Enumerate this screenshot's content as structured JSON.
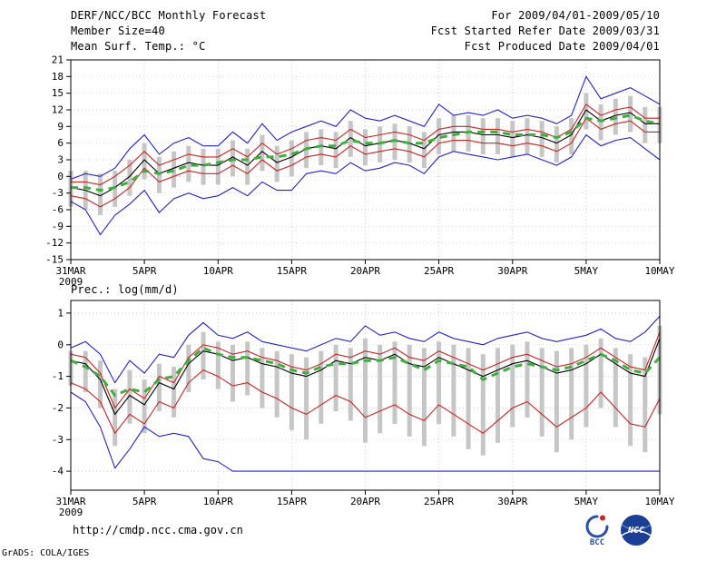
{
  "header": {
    "title": "DERF/NCC/BCC Monthly Forecast",
    "period": "For 2009/04/01-2009/05/10",
    "member_size": "Member Size=40",
    "refer_date": "Fcst Started Refer Date 2009/03/31",
    "produced_date": "Fcst Produced Date 2009/04/01"
  },
  "footer": {
    "url": "http://cmdp.ncc.cma.gov.cn",
    "grads_credit": "GrADS: COLA/IGES",
    "logos": {
      "bcc": "BCC",
      "ncc": "NCC"
    }
  },
  "chart_data": [
    {
      "type": "line",
      "title": "Mean Surf. Temp.: °C",
      "x_axis": "daily values from 31MAR2009 to 10MAY2009",
      "xticks": [
        {
          "i": 0,
          "label": "31MAR",
          "sub": "2009"
        },
        {
          "i": 5,
          "label": "5APR"
        },
        {
          "i": 10,
          "label": "10APR"
        },
        {
          "i": 15,
          "label": "15APR"
        },
        {
          "i": 20,
          "label": "20APR"
        },
        {
          "i": 25,
          "label": "25APR"
        },
        {
          "i": 30,
          "label": "30APR"
        },
        {
          "i": 35,
          "label": "5MAY"
        },
        {
          "i": 40,
          "label": "10MAY"
        }
      ],
      "yticks": [
        21,
        18,
        15,
        12,
        9,
        6,
        3,
        0,
        -3,
        -6,
        -9,
        -12,
        -15
      ],
      "ylim": [
        -15,
        21
      ],
      "grid": true,
      "bars": {
        "name": "ensemble-spread",
        "color": "#c6c6c6",
        "upper": [
          1,
          1,
          0.5,
          1,
          3,
          6,
          3.5,
          4.5,
          5.5,
          5,
          5,
          6.5,
          5,
          7.5,
          5.5,
          6.5,
          8,
          8.5,
          8,
          10,
          8.5,
          9,
          9.5,
          9,
          8,
          10.5,
          11,
          11,
          10.5,
          10.5,
          10,
          10.5,
          10,
          9,
          10.5,
          15,
          13,
          14,
          14.5,
          12.5,
          12.5
        ],
        "lower": [
          -5.5,
          -6,
          -7,
          -5.5,
          -3.5,
          -0.5,
          -3,
          -2,
          -1,
          -1.5,
          -1.5,
          0,
          -1.5,
          1,
          -1,
          0,
          1.5,
          2,
          1.5,
          3.5,
          2,
          2.5,
          3,
          2.5,
          1.5,
          4,
          4.5,
          4.5,
          4,
          4,
          3.5,
          4,
          3.5,
          2.5,
          4,
          8.5,
          6.5,
          7.5,
          8,
          6,
          6
        ]
      },
      "series": [
        {
          "name": "ensemble-max",
          "color": "#2222cc",
          "values": [
            -0.5,
            0.5,
            0,
            1.5,
            5,
            7.5,
            4,
            6,
            7,
            5.5,
            5.5,
            8,
            6,
            9.5,
            6.5,
            8,
            9,
            10,
            9,
            12,
            10.5,
            10,
            11,
            10,
            9,
            13,
            11,
            11.5,
            11,
            12,
            10.5,
            11,
            10.5,
            9.5,
            11,
            18,
            14,
            15,
            16,
            14.5,
            13
          ]
        },
        {
          "name": "ensemble-min",
          "color": "#2222cc",
          "values": [
            -4.5,
            -6,
            -10.5,
            -7,
            -5,
            -2.5,
            -6.5,
            -4,
            -3,
            -4,
            -3.5,
            -2,
            -3.5,
            -1,
            -2.5,
            -2.5,
            0.5,
            1,
            0.5,
            2.5,
            1,
            1.5,
            2.5,
            2,
            0.5,
            3.5,
            4.5,
            4,
            3.5,
            3,
            3.5,
            4,
            3,
            2,
            3.5,
            7.5,
            5.5,
            6.5,
            7,
            5,
            3
          ]
        },
        {
          "name": "upper-percentile",
          "color": "#cc2222",
          "values": [
            -1,
            -1,
            -1.5,
            0,
            2,
            4.5,
            2,
            3,
            4,
            3.5,
            3.5,
            5,
            3.5,
            6,
            4,
            5,
            6.5,
            7,
            6.5,
            8.5,
            7,
            7.5,
            8,
            7.5,
            6.5,
            8.5,
            9,
            9,
            8.5,
            8.5,
            8,
            8.5,
            8,
            7,
            8.5,
            13,
            11,
            12,
            12.5,
            10.5,
            10.5
          ]
        },
        {
          "name": "lower-percentile",
          "color": "#cc2222",
          "values": [
            -3.5,
            -4,
            -5.5,
            -4,
            -2,
            1.5,
            -1,
            0,
            1,
            0.5,
            0.5,
            2,
            0.5,
            3,
            1,
            2,
            3.5,
            4,
            3.5,
            5.5,
            4,
            4.5,
            5,
            4.5,
            3.5,
            6,
            6.5,
            6.5,
            6,
            6,
            5.5,
            6,
            5.5,
            4.5,
            6,
            10.5,
            8.5,
            9.5,
            10,
            8,
            8
          ]
        },
        {
          "name": "ensemble-mean",
          "color": "#000000",
          "values": [
            -2,
            -2.5,
            -3.5,
            -2,
            0,
            3,
            0.5,
            1.5,
            2.5,
            2,
            2,
            3.5,
            2,
            4.5,
            2.5,
            3.5,
            5,
            5.5,
            5,
            7,
            5.5,
            6,
            6.5,
            6,
            5,
            7.5,
            8,
            8,
            7.5,
            7.5,
            7,
            7.5,
            7,
            6,
            7.5,
            12,
            10,
            11,
            11.5,
            9.5,
            9.5
          ]
        },
        {
          "name": "climatology",
          "color": "#3fae3f",
          "width": 3,
          "dash": "8 6",
          "values": [
            -2,
            -2,
            -2.5,
            -2,
            -1,
            1,
            0.5,
            1,
            2,
            2,
            2.5,
            3,
            3,
            3.5,
            3.5,
            4,
            5,
            5.5,
            5.5,
            6.5,
            6,
            6,
            6.5,
            6,
            6,
            7,
            7.5,
            8,
            8,
            8,
            7.5,
            7.5,
            7.5,
            7,
            8,
            10.5,
            10,
            10.5,
            11,
            10,
            9.5
          ]
        }
      ]
    },
    {
      "type": "line",
      "title": "Prec.: log(mm/d)",
      "x_axis": "daily values from 31MAR2009 to 10MAY2009",
      "xticks": [
        {
          "i": 0,
          "label": "31MAR",
          "sub": "2009"
        },
        {
          "i": 5,
          "label": "5APR"
        },
        {
          "i": 10,
          "label": "10APR"
        },
        {
          "i": 15,
          "label": "15APR"
        },
        {
          "i": 20,
          "label": "20APR"
        },
        {
          "i": 25,
          "label": "25APR"
        },
        {
          "i": 30,
          "label": "30APR"
        },
        {
          "i": 35,
          "label": "5MAY"
        },
        {
          "i": 40,
          "label": "10MAY"
        }
      ],
      "yticks": [
        1,
        0,
        -1,
        -2,
        -3,
        -4
      ],
      "ylim": [
        -4.6,
        1.4
      ],
      "grid": true,
      "bars": {
        "name": "ensemble-spread",
        "color": "#c6c6c6",
        "upper": [
          -0.2,
          -0.2,
          -0.5,
          -1.4,
          -0.8,
          -1.1,
          -0.6,
          -0.7,
          0.0,
          0.4,
          0.1,
          0.0,
          0.1,
          -0.1,
          -0.2,
          -0.3,
          -0.4,
          -0.2,
          0.0,
          -0.1,
          0.2,
          0.0,
          0.1,
          0.0,
          -0.1,
          0.1,
          0.0,
          -0.1,
          -0.3,
          -0.1,
          0.0,
          0.1,
          -0.1,
          -0.2,
          -0.1,
          0.0,
          0.2,
          -0.1,
          -0.3,
          -0.4,
          0.6
        ],
        "lower": [
          -1.3,
          -1.5,
          -2.0,
          -3.2,
          -2.5,
          -2.8,
          -2.1,
          -2.3,
          -1.5,
          -1.1,
          -1.4,
          -1.8,
          -1.6,
          -2.0,
          -2.3,
          -2.7,
          -3.0,
          -2.5,
          -2.1,
          -2.4,
          -3.1,
          -2.8,
          -2.5,
          -2.9,
          -3.2,
          -2.5,
          -2.9,
          -3.3,
          -3.5,
          -3.1,
          -2.6,
          -2.3,
          -2.9,
          -3.4,
          -3.0,
          -2.6,
          -2.0,
          -2.6,
          -3.2,
          -3.4,
          -2.2
        ]
      },
      "series": [
        {
          "name": "ensemble-max",
          "color": "#2222cc",
          "values": [
            -0.1,
            0.1,
            -0.3,
            -1.2,
            -0.5,
            -0.9,
            -0.3,
            -0.4,
            0.3,
            0.7,
            0.3,
            0.2,
            0.4,
            0.1,
            0.0,
            -0.1,
            -0.2,
            0.0,
            0.2,
            0.1,
            0.6,
            0.3,
            0.4,
            0.2,
            0.1,
            0.4,
            0.2,
            0.1,
            0.0,
            0.2,
            0.3,
            0.4,
            0.2,
            0.1,
            0.2,
            0.3,
            0.5,
            0.2,
            0.1,
            0.4,
            0.9
          ]
        },
        {
          "name": "ensemble-min",
          "color": "#2222cc",
          "values": [
            -1.5,
            -1.8,
            -2.6,
            -3.9,
            -3.3,
            -2.6,
            -2.9,
            -2.8,
            -2.9,
            -3.6,
            -3.7,
            -4.0,
            -4.0,
            -4.0,
            -4.0,
            -4.0,
            -4.0,
            -4.0,
            -4.0,
            -4.0,
            -4.0,
            -4.0,
            -4.0,
            -4.0,
            -4.0,
            -4.0,
            -4.0,
            -4.0,
            -4.0,
            -4.0,
            -4.0,
            -4.0,
            -4.0,
            -4.0,
            -4.0,
            -4.0,
            -4.0,
            -4.0,
            -4.0,
            -4.0,
            -4.0
          ]
        },
        {
          "name": "upper-percentile",
          "color": "#cc2222",
          "values": [
            -0.3,
            -0.4,
            -0.9,
            -2.0,
            -1.4,
            -1.7,
            -1.0,
            -1.2,
            -0.4,
            0.0,
            -0.1,
            -0.3,
            -0.2,
            -0.4,
            -0.5,
            -0.7,
            -0.8,
            -0.6,
            -0.3,
            -0.4,
            -0.2,
            -0.3,
            -0.1,
            -0.4,
            -0.5,
            -0.2,
            -0.4,
            -0.6,
            -0.8,
            -0.6,
            -0.4,
            -0.3,
            -0.5,
            -0.7,
            -0.6,
            -0.4,
            -0.1,
            -0.4,
            -0.7,
            -0.8,
            0.4
          ]
        },
        {
          "name": "lower-percentile",
          "color": "#cc2222",
          "values": [
            -1.2,
            -1.4,
            -1.8,
            -2.8,
            -2.2,
            -2.5,
            -1.8,
            -2.0,
            -1.2,
            -0.8,
            -1.0,
            -1.3,
            -1.2,
            -1.5,
            -1.7,
            -2.0,
            -2.2,
            -1.9,
            -1.6,
            -1.8,
            -2.3,
            -2.1,
            -1.9,
            -2.2,
            -2.4,
            -1.9,
            -2.2,
            -2.5,
            -2.8,
            -2.4,
            -2.0,
            -1.8,
            -2.2,
            -2.6,
            -2.3,
            -2.0,
            -1.5,
            -2.0,
            -2.5,
            -2.6,
            -1.7
          ]
        },
        {
          "name": "ensemble-mean",
          "color": "#000000",
          "values": [
            -0.5,
            -0.6,
            -1.1,
            -2.2,
            -1.6,
            -1.9,
            -1.2,
            -1.4,
            -0.6,
            -0.2,
            -0.3,
            -0.5,
            -0.4,
            -0.6,
            -0.7,
            -0.9,
            -1.0,
            -0.8,
            -0.5,
            -0.6,
            -0.4,
            -0.5,
            -0.3,
            -0.6,
            -0.7,
            -0.4,
            -0.6,
            -0.8,
            -1.0,
            -0.8,
            -0.6,
            -0.5,
            -0.7,
            -0.9,
            -0.8,
            -0.6,
            -0.3,
            -0.6,
            -0.9,
            -1.0,
            0.2
          ]
        },
        {
          "name": "climatology",
          "color": "#3fae3f",
          "width": 3,
          "dash": "8 6",
          "values": [
            -0.5,
            -0.7,
            -1.0,
            -1.6,
            -1.4,
            -1.5,
            -1.1,
            -1.0,
            -0.5,
            -0.1,
            -0.3,
            -0.4,
            -0.4,
            -0.5,
            -0.6,
            -0.8,
            -0.9,
            -0.7,
            -0.6,
            -0.6,
            -0.5,
            -0.5,
            -0.4,
            -0.6,
            -0.8,
            -0.5,
            -0.6,
            -0.7,
            -1.1,
            -0.9,
            -0.7,
            -0.6,
            -0.7,
            -0.8,
            -0.7,
            -0.5,
            -0.3,
            -0.5,
            -0.8,
            -0.9,
            -0.4
          ]
        }
      ]
    }
  ]
}
